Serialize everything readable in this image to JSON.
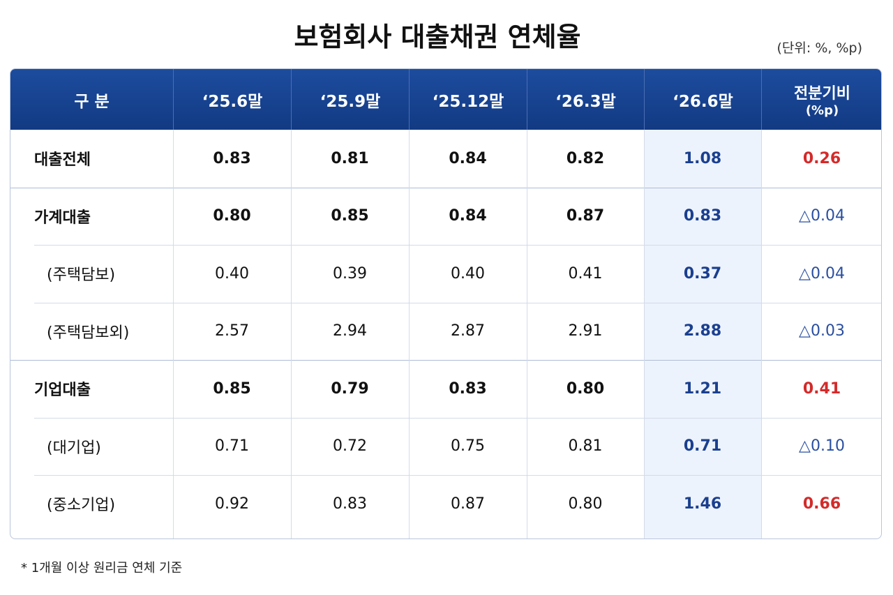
{
  "title": "보험회사 대출채권 연체율",
  "unit": "(단위: %, %p)",
  "table": {
    "header": [
      "구 분",
      "‘25.6말",
      "‘25.9말",
      "‘25.12말",
      "‘26.3말",
      "‘26.6말"
    ],
    "change_header": [
      "전분기비",
      "(%p)"
    ],
    "groups": [
      {
        "main": {
          "label": "대출전체",
          "values": [
            "0.83",
            "0.81",
            "0.84",
            "0.82",
            "1.08",
            "0.26"
          ]
        },
        "subs": []
      },
      {
        "main": {
          "label": "가계대출",
          "values": [
            "0.80",
            "0.85",
            "0.84",
            "0.87",
            "0.83",
            "△0.04"
          ]
        },
        "subs": [
          {
            "label": "(주택담보)",
            "values": [
              "0.40",
              "0.39",
              "0.40",
              "0.41",
              "0.37",
              "△0.04"
            ]
          },
          {
            "label": "(주택담보외)",
            "values": [
              "2.57",
              "2.94",
              "2.87",
              "2.91",
              "2.88",
              "△0.03"
            ]
          }
        ]
      },
      {
        "main": {
          "label": "기업대출",
          "values": [
            "0.85",
            "0.79",
            "0.83",
            "0.80",
            "1.21",
            "0.41"
          ]
        },
        "subs": [
          {
            "label": "(대기업)",
            "values": [
              "0.71",
              "0.72",
              "0.75",
              "0.81",
              "0.71",
              "△0.10"
            ]
          },
          {
            "label": "(중소기업)",
            "values": [
              "0.92",
              "0.83",
              "0.87",
              "0.80",
              "1.46",
              "0.66"
            ]
          }
        ]
      }
    ]
  },
  "footnote": "* 1개월 이상 원리금 연체 기준"
}
